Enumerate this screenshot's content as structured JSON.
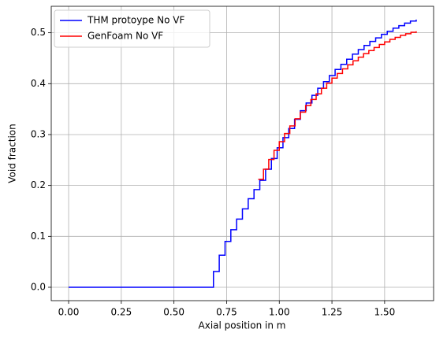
{
  "chart_data": {
    "type": "step",
    "xlabel": "Axial position in m",
    "ylabel": "Void fraction",
    "xlim": [
      -0.0825,
      1.7325
    ],
    "ylim": [
      -0.0263,
      0.552
    ],
    "xticks": [
      {
        "value": 0,
        "label": "0.00"
      },
      0.25,
      {
        "value": 0.5,
        "label": "0.50"
      },
      0.75,
      {
        "value": 1,
        "label": "1.00"
      },
      1.25,
      {
        "value": 1.5,
        "label": "1.50"
      }
    ],
    "yticks": [
      {
        "value": 0,
        "label": "0.0"
      },
      0.1,
      0.2,
      0.3,
      0.4,
      0.5
    ],
    "grid": true,
    "legend": "upper left",
    "series": [
      {
        "name": "THM protoype No VF",
        "color": "#0000ff",
        "x": [
          0,
          0.0275,
          0.055,
          0.0825,
          0.11,
          0.1375,
          0.165,
          0.1925,
          0.22,
          0.2475,
          0.275,
          0.3025,
          0.33,
          0.3575,
          0.385,
          0.4125,
          0.44,
          0.4675,
          0.495,
          0.5225,
          0.55,
          0.5775,
          0.605,
          0.6325,
          0.66,
          0.6875,
          0.715,
          0.7425,
          0.77,
          0.7975,
          0.825,
          0.8525,
          0.88,
          0.9075,
          0.935,
          0.9625,
          0.99,
          1.0175,
          1.045,
          1.0725,
          1.1,
          1.1275,
          1.155,
          1.1825,
          1.21,
          1.2375,
          1.265,
          1.2925,
          1.32,
          1.3475,
          1.375,
          1.4025,
          1.43,
          1.4575,
          1.485,
          1.5125,
          1.54,
          1.5675,
          1.595,
          1.6225,
          1.65
        ],
        "values": [
          0,
          0,
          0,
          0,
          0,
          0,
          0,
          0,
          0,
          0,
          0,
          0,
          0,
          0,
          0,
          0,
          0,
          0,
          0,
          0,
          0,
          0,
          0,
          0,
          0,
          0.031,
          0.063,
          0.09,
          0.113,
          0.134,
          0.154,
          0.174,
          0.192,
          0.21,
          0.232,
          0.253,
          0.274,
          0.294,
          0.312,
          0.33,
          0.347,
          0.362,
          0.377,
          0.391,
          0.404,
          0.416,
          0.428,
          0.438,
          0.448,
          0.458,
          0.467,
          0.475,
          0.483,
          0.49,
          0.497,
          0.503,
          0.509,
          0.514,
          0.519,
          0.523,
          0.526
        ]
      },
      {
        "name": "GenFoam No VF",
        "color": "#ff0000",
        "x": [
          0.9,
          0.925,
          0.95,
          0.975,
          1.0,
          1.025,
          1.05,
          1.075,
          1.1,
          1.125,
          1.15,
          1.175,
          1.2,
          1.225,
          1.25,
          1.275,
          1.3,
          1.325,
          1.35,
          1.375,
          1.4,
          1.425,
          1.45,
          1.475,
          1.5,
          1.525,
          1.55,
          1.575,
          1.6,
          1.625,
          1.65
        ],
        "values": [
          0.212,
          0.232,
          0.251,
          0.269,
          0.286,
          0.302,
          0.317,
          0.331,
          0.344,
          0.357,
          0.369,
          0.38,
          0.391,
          0.401,
          0.411,
          0.42,
          0.429,
          0.437,
          0.445,
          0.452,
          0.459,
          0.465,
          0.471,
          0.477,
          0.482,
          0.487,
          0.491,
          0.495,
          0.498,
          0.501,
          0.503
        ]
      }
    ]
  }
}
